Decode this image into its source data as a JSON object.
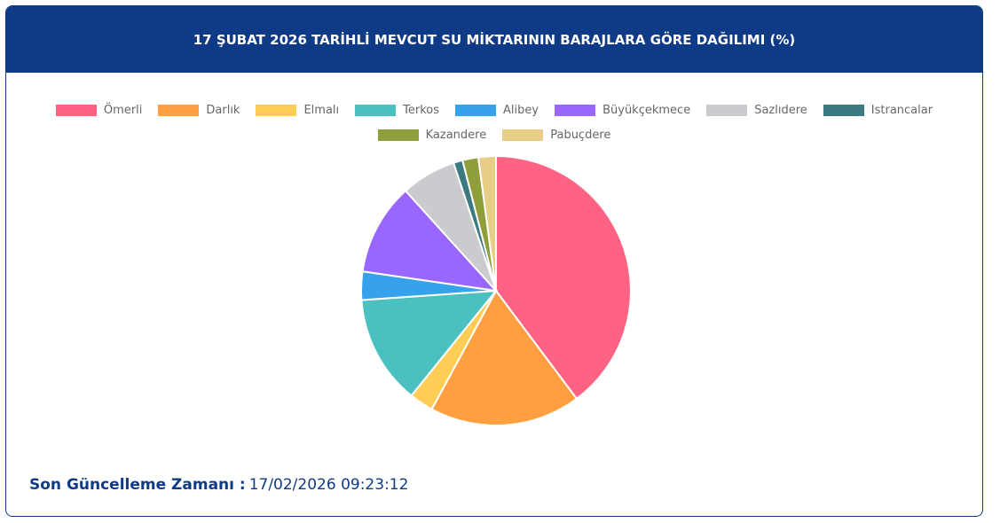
{
  "chart_data": {
    "type": "pie",
    "title": "17 ŞUBAT 2026 TARİHLİ MEVCUT SU MİKTARININ BARAJLARA GÖRE DAĞILIMI (%)",
    "categories": [
      "Ömerli",
      "Darlık",
      "Elmalı",
      "Terkos",
      "Alibey",
      "Büyükçekmece",
      "Sazlıdere",
      "Istrancalar",
      "Kazandere",
      "Pabuçdere"
    ],
    "values": [
      39.8,
      18.1,
      2.9,
      13.1,
      3.4,
      11.0,
      6.6,
      1.1,
      1.9,
      2.1
    ],
    "colors": [
      "#ff6384",
      "#ff9f40",
      "#ffcd56",
      "#4bc0c0",
      "#36a2eb",
      "#9966ff",
      "#c9cbcf",
      "#3b7a80",
      "#8f9d3a",
      "#e8cd86"
    ],
    "legend": "top"
  },
  "footer": {
    "label": "Son Güncelleme Zamanı :",
    "time": "17/02/2026 09:23:12"
  }
}
